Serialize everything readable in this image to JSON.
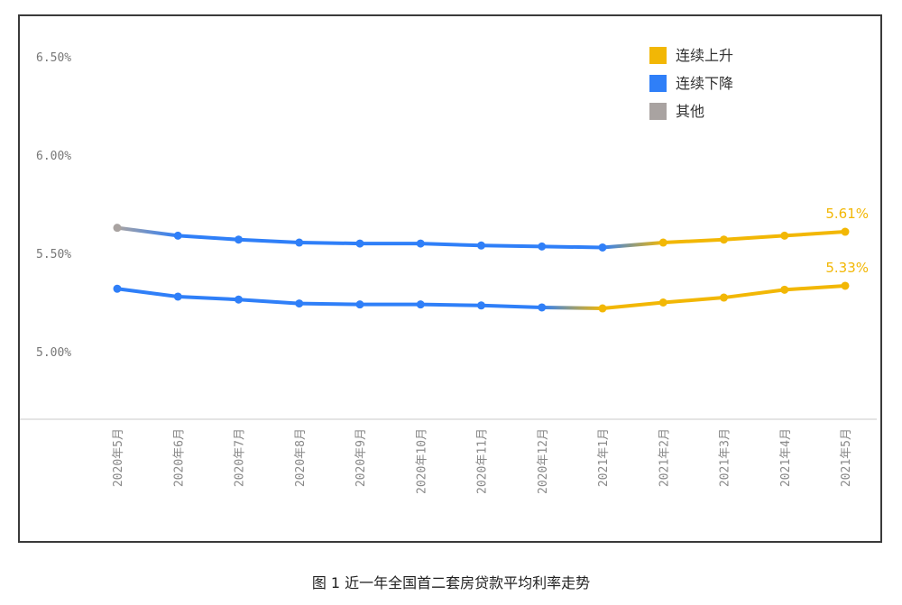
{
  "chart_data": {
    "type": "line",
    "title": "",
    "xlabel": "",
    "ylabel": "",
    "x": [
      "2020年5月",
      "2020年6月",
      "2020年7月",
      "2020年8月",
      "2020年9月",
      "2020年10月",
      "2020年11月",
      "2020年12月",
      "2021年1月",
      "2021年2月",
      "2021年3月",
      "2021年4月",
      "2021年5月"
    ],
    "yticks": [
      "6.50%",
      "6.00%",
      "5.50%",
      "5.00%"
    ],
    "ylim": [
      4.65,
      6.72
    ],
    "series": [
      {
        "values": [
          5.63,
          5.59,
          5.57,
          5.555,
          5.55,
          5.55,
          5.54,
          5.535,
          5.53,
          5.555,
          5.57,
          5.59,
          5.61
        ],
        "end_label": "5.61%"
      },
      {
        "values": [
          5.32,
          5.28,
          5.265,
          5.245,
          5.24,
          5.24,
          5.235,
          5.225,
          5.22,
          5.25,
          5.275,
          5.315,
          5.335
        ],
        "end_label": "5.33%"
      }
    ],
    "legend": [
      {
        "label": "连续上升",
        "color": "#f2b705"
      },
      {
        "label": "连续下降",
        "color": "#2f7ff8"
      },
      {
        "label": "其他",
        "color": "#a9a3a1"
      }
    ],
    "legend_position": "top-right",
    "grid": false
  },
  "caption": "图 1  近一年全国首二套房贷款平均利率走势"
}
